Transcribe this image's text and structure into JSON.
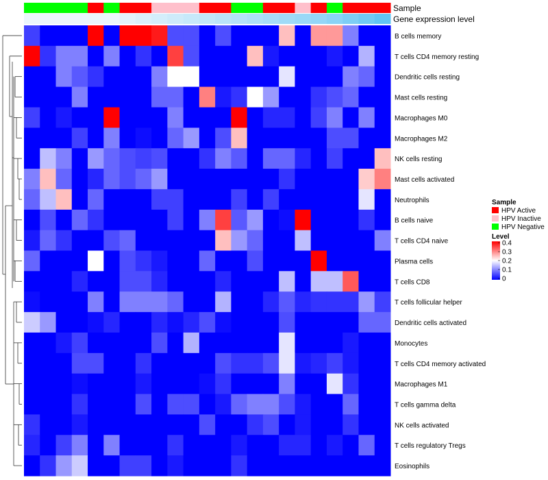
{
  "chart_data": {
    "type": "heatmap",
    "annotation_tracks": [
      {
        "name": "Sample",
        "values": [
          "Negative",
          "Negative",
          "Negative",
          "Negative",
          "Active",
          "Negative",
          "Active",
          "Active",
          "Inactive",
          "Inactive",
          "Inactive",
          "Active",
          "Active",
          "Negative",
          "Negative",
          "Active",
          "Active",
          "Inactive",
          "Active",
          "Negative",
          "Active",
          "Active",
          "Active"
        ]
      },
      {
        "name": "Gene expression level",
        "values": [
          0.0,
          0.0,
          0.0,
          0.0,
          0.0,
          0.0,
          0.05,
          0.1,
          0.14,
          0.18,
          0.22,
          0.26,
          0.3,
          0.34,
          0.38,
          0.42,
          0.46,
          0.5,
          0.54,
          0.6,
          0.68,
          0.76,
          0.85
        ]
      }
    ],
    "rows": [
      "B cells memory",
      "T cells CD4 memory resting",
      "Dendritic cells resting",
      "Mast cells resting",
      "Macrophages M0",
      "Macrophages M2",
      "NK cells resting",
      "Mast cells activated",
      "Neutrophils",
      "B cells naive",
      "T cells CD4 naive",
      "Plasma cells",
      "T cells CD8",
      "T cells follicular helper",
      "Dendritic cells activated",
      "Monocytes",
      "T cells CD4 memory activated",
      "Macrophages M1",
      "T cells gamma delta",
      "NK cells activated",
      "T cells regulatory  Tregs",
      "Eosinophils"
    ],
    "values": [
      [
        0.05,
        0,
        0,
        0,
        0.4,
        0,
        0.4,
        0.4,
        0.38,
        0.06,
        0.06,
        0,
        0.06,
        0,
        0,
        0,
        0.25,
        0,
        0.28,
        0.28,
        0.1,
        0,
        0
      ],
      [
        0.4,
        0.04,
        0.1,
        0.1,
        0,
        0.1,
        0,
        0.04,
        0,
        0.35,
        0.06,
        0,
        0,
        0,
        0.25,
        0.02,
        0,
        0,
        0,
        0.02,
        0,
        0.14,
        0
      ],
      [
        0,
        0,
        0.1,
        0.07,
        0.04,
        0,
        0,
        0,
        0.1,
        0.2,
        0.2,
        0,
        0,
        0,
        0,
        0,
        0.18,
        0,
        0,
        0,
        0.1,
        0.08,
        0
      ],
      [
        0,
        0,
        0,
        0.1,
        0,
        0,
        0,
        0,
        0.08,
        0.08,
        0,
        0.3,
        0.02,
        0.04,
        0.2,
        0.12,
        0,
        0,
        0.04,
        0.06,
        0.08,
        0,
        0
      ],
      [
        0.05,
        0,
        0.02,
        0,
        0,
        0.4,
        0,
        0,
        0,
        0.1,
        0,
        0,
        0,
        0.4,
        0,
        0.03,
        0.03,
        0,
        0.05,
        0.1,
        0,
        0.1,
        0
      ],
      [
        0,
        0,
        0,
        0.05,
        0,
        0.1,
        0,
        0.01,
        0,
        0.08,
        0.12,
        0,
        0.06,
        0.25,
        0,
        0,
        0,
        0,
        0,
        0.06,
        0.06,
        0,
        0
      ],
      [
        0,
        0.15,
        0.1,
        0,
        0.12,
        0.08,
        0.06,
        0.05,
        0.06,
        0,
        0,
        0.04,
        0.1,
        0.07,
        0,
        0.08,
        0.08,
        0.03,
        0,
        0.05,
        0,
        0,
        0.25
      ],
      [
        0.1,
        0.25,
        0.08,
        0,
        0.03,
        0.08,
        0.06,
        0.08,
        0.12,
        0,
        0,
        0,
        0,
        0,
        0,
        0,
        0.04,
        0,
        0,
        0,
        0,
        0.24,
        0.3
      ],
      [
        0.08,
        0.15,
        0.25,
        0,
        0.08,
        0,
        0,
        0,
        0.05,
        0.05,
        0,
        0,
        0,
        0.05,
        0,
        0.05,
        0,
        0,
        0,
        0,
        0,
        0.18,
        0
      ],
      [
        0,
        0.06,
        0,
        0.08,
        0.04,
        0,
        0,
        0,
        0,
        0.05,
        0,
        0.1,
        0.35,
        0.07,
        0.12,
        0,
        0.01,
        0.4,
        0,
        0,
        0,
        0.04,
        0
      ],
      [
        0.02,
        0.08,
        0.04,
        0,
        0,
        0.06,
        0.08,
        0,
        0,
        0,
        0,
        0,
        0.25,
        0.12,
        0.08,
        0,
        0,
        0.15,
        0,
        0,
        0,
        0,
        0.1
      ],
      [
        0.08,
        0,
        0,
        0,
        0.2,
        0,
        0.06,
        0.04,
        0.02,
        0,
        0,
        0.08,
        0,
        0,
        0.06,
        0,
        0,
        0,
        0.4,
        0,
        0,
        0,
        0
      ],
      [
        0,
        0,
        0,
        0.03,
        0,
        0,
        0.06,
        0.06,
        0.03,
        0,
        0,
        0,
        0.03,
        0,
        0,
        0,
        0.15,
        0,
        0.15,
        0.15,
        0.33,
        0,
        0
      ],
      [
        0.01,
        0,
        0,
        0,
        0.1,
        0,
        0.1,
        0.1,
        0.1,
        0.08,
        0,
        0,
        0.14,
        0,
        0,
        0.03,
        0.07,
        0.03,
        0.04,
        0.04,
        0.04,
        0.12,
        0.05
      ],
      [
        0.16,
        0.12,
        0,
        0,
        0.01,
        0.03,
        0,
        0,
        0.03,
        0.01,
        0.03,
        0.06,
        0.01,
        0,
        0,
        0,
        0.06,
        0,
        0,
        0,
        0,
        0.08,
        0.08
      ],
      [
        0,
        0,
        0.02,
        0.05,
        0,
        0,
        0,
        0,
        0.06,
        0,
        0.14,
        0,
        0,
        0,
        0,
        0,
        0.18,
        0,
        0,
        0,
        0.02,
        0,
        0
      ],
      [
        0,
        0,
        0,
        0.06,
        0.06,
        0,
        0,
        0.04,
        0,
        0,
        0,
        0,
        0.06,
        0.04,
        0.04,
        0.06,
        0.18,
        0.02,
        0.03,
        0.05,
        0.02,
        0,
        0
      ],
      [
        0,
        0,
        0,
        0.01,
        0,
        0,
        0,
        0.02,
        0,
        0,
        0,
        0.01,
        0.04,
        0,
        0,
        0,
        0.1,
        0,
        0,
        0.18,
        0.04,
        0,
        0
      ],
      [
        0,
        0,
        0,
        0.04,
        0,
        0,
        0,
        0.06,
        0,
        0.06,
        0.06,
        0,
        0.02,
        0.08,
        0.1,
        0.1,
        0.06,
        0.02,
        0,
        0,
        0.08,
        0,
        0
      ],
      [
        0.04,
        0,
        0,
        0.02,
        0,
        0,
        0,
        0,
        0,
        0,
        0,
        0.06,
        0,
        0,
        0.04,
        0.06,
        0,
        0.02,
        0,
        0,
        0.04,
        0,
        0
      ],
      [
        0.03,
        0,
        0.05,
        0.1,
        0,
        0.1,
        0,
        0,
        0,
        0.04,
        0,
        0,
        0,
        0.02,
        0,
        0,
        0.03,
        0.03,
        0,
        0.02,
        0,
        0.08,
        0
      ],
      [
        0,
        0.04,
        0.12,
        0.16,
        0,
        0,
        0.05,
        0.05,
        0,
        0.02,
        0,
        0,
        0,
        0.04,
        0,
        0,
        0,
        0,
        0,
        0,
        0,
        0,
        0
      ]
    ],
    "color_scale": {
      "min": 0,
      "mid": 0.2,
      "max": 0.4,
      "low_color": "#0000ff",
      "mid_color": "#ffffff",
      "high_color": "#ff0000"
    },
    "legend": {
      "sample_title": "Sample",
      "sample_items": [
        {
          "key": "Active",
          "label": "HPV Active",
          "color": "#ff0000"
        },
        {
          "key": "Inactive",
          "label": "HPV Inactive",
          "color": "#ffc0cb"
        },
        {
          "key": "Negative",
          "label": "HPV Negative",
          "color": "#00ff00"
        }
      ],
      "level_title": "Level",
      "level_ticks": [
        "0.4",
        "0.3",
        "0.2",
        "0.1",
        "0"
      ],
      "placement": "right"
    },
    "expression_colors": {
      "low": "#ebf6fc",
      "high": "#49bbf2"
    },
    "row_dendrogram": true,
    "column_dendrogram": false
  }
}
